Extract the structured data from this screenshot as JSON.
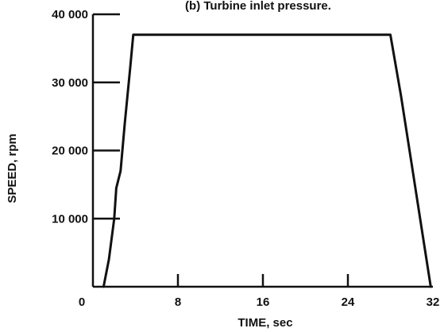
{
  "chart_data": {
    "type": "line",
    "subtitle": "(b) Turbine inlet pressure.",
    "xlabel": "TIME, sec",
    "ylabel": "SPEED, rpm",
    "xlim": [
      0,
      32
    ],
    "ylim": [
      0,
      40000
    ],
    "x_ticks": [
      0,
      8,
      16,
      24,
      32
    ],
    "x_tick_labels": [
      "0",
      "8",
      "16",
      "24",
      "32"
    ],
    "y_ticks": [
      10000,
      20000,
      30000,
      40000
    ],
    "y_tick_labels": [
      "10 000",
      "20 000",
      "30 000",
      "40 000"
    ],
    "grid": false,
    "series": [
      {
        "x": [
          1.0,
          1.5,
          2.0,
          2.2,
          2.6,
          3.0,
          3.5,
          3.8,
          16,
          24,
          28.0,
          29.0,
          30.0,
          31.0,
          31.8
        ],
        "y": [
          0,
          4000,
          10000,
          14500,
          17000,
          24000,
          32000,
          37000,
          37000,
          37000,
          37000,
          28000,
          18000,
          8000,
          0
        ]
      }
    ]
  }
}
